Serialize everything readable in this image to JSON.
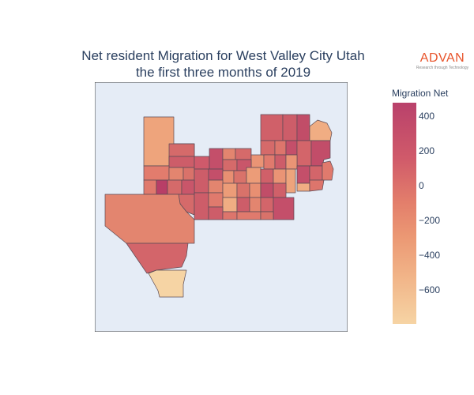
{
  "chart_data": {
    "type": "choropleth",
    "title_lines": [
      "Net resident Migration for West Valley City Utah",
      "the first three months of 2019"
    ],
    "colorbar": {
      "title": "Migration Net",
      "ticks": [
        "400",
        "200",
        "0",
        "−200",
        "−400",
        "−600"
      ],
      "tick_values": [
        400,
        200,
        0,
        -200,
        -400,
        -600
      ],
      "range": [
        -790,
        470
      ],
      "colorscale": [
        "#f6d4a4",
        "#f1b387",
        "#eb9773",
        "#e37e6b",
        "#d05a6a",
        "#b9416b"
      ]
    },
    "background_color": "#e5ecf6",
    "region_outline_color": "#5a4a55"
  },
  "branding": {
    "logo_word": "ADVAN",
    "logo_tagline": "Research through Technology",
    "logo_color": "#e8532a"
  }
}
